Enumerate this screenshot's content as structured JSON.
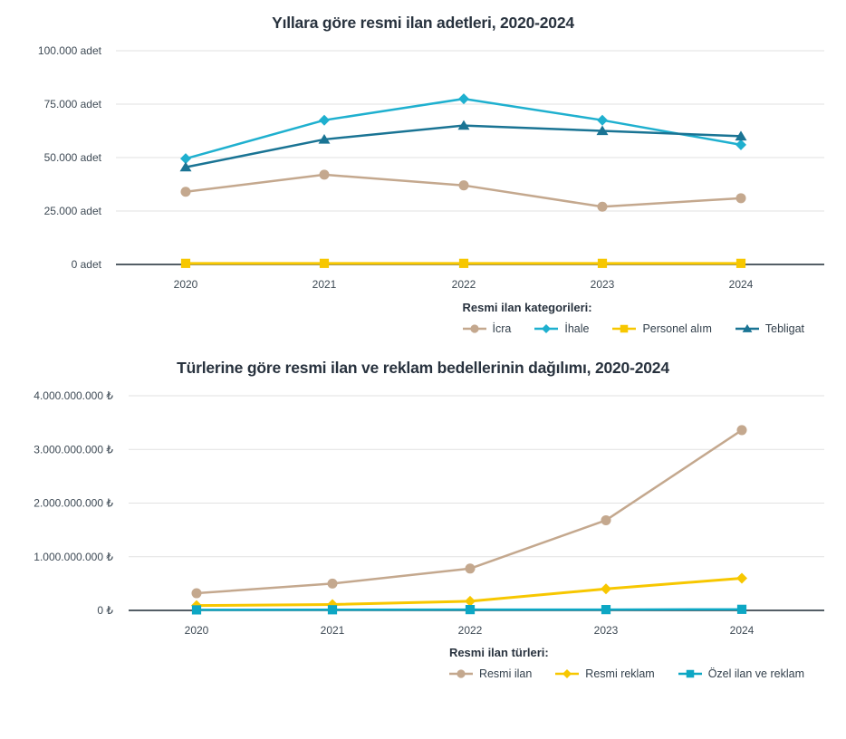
{
  "page": {
    "background": "#ffffff"
  },
  "colors": {
    "title_text": "#28323e",
    "tick_text": "#3e4a55",
    "gridline": "#e2e2e2",
    "axis_line": "#1c2834",
    "icra_tan": "#c4a88e",
    "ihale_cyan": "#1fb0cf",
    "personel_yellow": "#f7c700",
    "tebligat_steel": "#1a7494",
    "resmi_ilan_tan": "#c4a88e",
    "resmi_reklam_yellow": "#f7c700",
    "ozel_teal": "#0da7c4"
  },
  "chart_data": [
    {
      "type": "line",
      "title": "Yıllara göre resmi ilan adetleri, 2020-2024",
      "categories": [
        "2020",
        "2021",
        "2022",
        "2023",
        "2024"
      ],
      "series": [
        {
          "name": "İcra",
          "slug": "icra",
          "marker": "circle",
          "color": "#c4a88e",
          "stroke_width": 2.5,
          "values": [
            34000,
            42000,
            37000,
            27000,
            31000
          ]
        },
        {
          "name": "İhale",
          "slug": "ihale",
          "marker": "diamond",
          "color": "#1fb0cf",
          "stroke_width": 2.5,
          "values": [
            49500,
            67500,
            77500,
            67500,
            56000
          ]
        },
        {
          "name": "Personel alım",
          "slug": "personel-alim",
          "marker": "square",
          "color": "#f7c700",
          "stroke_width": 3,
          "values": [
            500,
            500,
            500,
            500,
            500
          ]
        },
        {
          "name": "Tebligat",
          "slug": "tebligat",
          "marker": "triangle",
          "color": "#1a7494",
          "stroke_width": 2.5,
          "values": [
            45500,
            58500,
            65000,
            62500,
            60000
          ]
        }
      ],
      "ylim": [
        0,
        100000
      ],
      "yticks": [
        {
          "value": 0,
          "label": "0 adet"
        },
        {
          "value": 25000,
          "label": "25.000 adet"
        },
        {
          "value": 50000,
          "label": "50.000 adet"
        },
        {
          "value": 75000,
          "label": "75.000 adet"
        },
        {
          "value": 100000,
          "label": "100.000 adet"
        }
      ],
      "xlabel": "",
      "ylabel": "",
      "grid": true,
      "legend_title": "Resmi ilan kategorileri:",
      "legend_position": "bottom-right"
    },
    {
      "type": "line",
      "title": "Türlerine göre resmi ilan ve reklam bedellerinin dağılımı, 2020-2024",
      "categories": [
        "2020",
        "2021",
        "2022",
        "2023",
        "2024"
      ],
      "series": [
        {
          "name": "Resmi ilan",
          "slug": "resmi-ilan",
          "marker": "circle",
          "color": "#c4a88e",
          "stroke_width": 2.5,
          "values": [
            320000000,
            500000000,
            780000000,
            1680000000,
            3360000000
          ]
        },
        {
          "name": "Resmi reklam",
          "slug": "resmi-reklam",
          "marker": "diamond",
          "color": "#f7c700",
          "stroke_width": 3,
          "values": [
            90000000,
            110000000,
            170000000,
            400000000,
            600000000
          ]
        },
        {
          "name": "Özel ilan ve reklam",
          "slug": "ozel-ilan-ve-reklam",
          "marker": "square",
          "color": "#0da7c4",
          "stroke_width": 2.5,
          "values": [
            10000000,
            12000000,
            15000000,
            15000000,
            20000000
          ]
        }
      ],
      "ylim": [
        0,
        4000000000
      ],
      "yticks": [
        {
          "value": 0,
          "label": "0 ₺"
        },
        {
          "value": 1000000000,
          "label": "1.000.000.000 ₺"
        },
        {
          "value": 2000000000,
          "label": "2.000.000.000 ₺"
        },
        {
          "value": 3000000000,
          "label": "3.000.000.000 ₺"
        },
        {
          "value": 4000000000,
          "label": "4.000.000.000 ₺"
        }
      ],
      "xlabel": "",
      "ylabel": "",
      "grid": true,
      "legend_title": "Resmi ilan türleri:",
      "legend_position": "bottom-right"
    }
  ]
}
